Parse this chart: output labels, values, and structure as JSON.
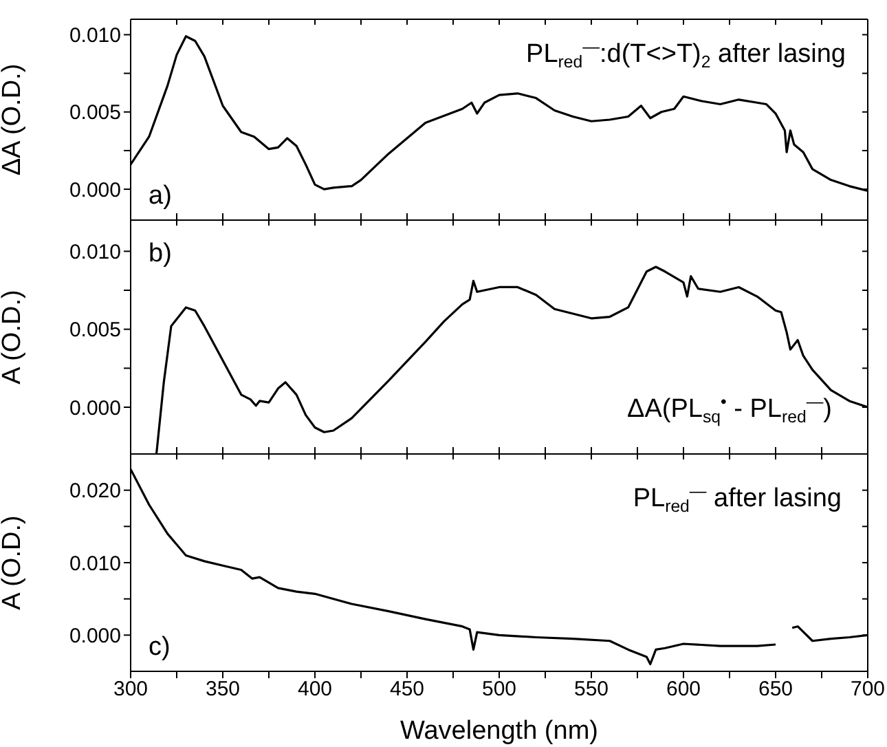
{
  "chart_data": [
    {
      "type": "line",
      "ylabel": "ΔA (O.D.)",
      "tick_labels": "y",
      "annotations": [
        "a)",
        "PL$_{red}$$^{—}$:d(T<>T)$_{2}$ after lasing"
      ],
      "xlim": [
        300,
        700
      ],
      "xticks": [
        300,
        {
          "value": 325,
          "label": null
        },
        350,
        {
          "value": 375,
          "label": null
        },
        400,
        {
          "value": 425,
          "label": null
        },
        450,
        {
          "value": 475,
          "label": null
        },
        500,
        {
          "value": 525,
          "label": null
        },
        550,
        {
          "value": 575,
          "label": null
        },
        600,
        {
          "value": 625,
          "label": null
        },
        650,
        {
          "value": 675,
          "label": null
        },
        700
      ],
      "ylim": [
        -0.002,
        0.011
      ],
      "yticks": [
        {
          "value": 0,
          "label": "0.000"
        },
        {
          "value": 0.0025,
          "label": null
        },
        {
          "value": 0.005,
          "label": "0.005"
        },
        {
          "value": 0.0075,
          "label": null
        },
        {
          "value": 0.01,
          "label": "0.010"
        }
      ],
      "series": [
        {
          "color": "#000000",
          "x": [
            300,
            310,
            320,
            325,
            330,
            335,
            340,
            350,
            360,
            367,
            375,
            380,
            385,
            390,
            395,
            400,
            405,
            410,
            420,
            425,
            440,
            460,
            480,
            485,
            488,
            492,
            500,
            510,
            520,
            530,
            540,
            550,
            560,
            570,
            577,
            582,
            588,
            595,
            600,
            610,
            620,
            630,
            640,
            645,
            650,
            655,
            656,
            658,
            660,
            665,
            670,
            680,
            690,
            700
          ],
          "values": [
            0.0016,
            0.0034,
            0.0067,
            0.0087,
            0.0099,
            0.0096,
            0.0086,
            0.0054,
            0.0037,
            0.0034,
            0.0026,
            0.0027,
            0.0033,
            0.0028,
            0.0016,
            0.0003,
            0.0,
            0.0001,
            0.0002,
            0.0006,
            0.0023,
            0.0043,
            0.0052,
            0.0056,
            0.0049,
            0.0056,
            0.0061,
            0.0062,
            0.0059,
            0.0051,
            0.0047,
            0.0044,
            0.0045,
            0.0047,
            0.0054,
            0.0046,
            0.005,
            0.0052,
            0.006,
            0.0057,
            0.0055,
            0.0058,
            0.0056,
            0.0055,
            0.0049,
            0.0038,
            0.0024,
            0.0038,
            0.0029,
            0.0024,
            0.0013,
            0.0006,
            0.0002,
            -0.0001
          ]
        }
      ]
    },
    {
      "type": "line",
      "ylabel": "A (O.D.)",
      "tick_labels": "y",
      "annotations": [
        "b)",
        "ΔA(PL$_{sq}$$^{•}$ - PL$_{red}$$^{—}$)"
      ],
      "xlim": [
        300,
        700
      ],
      "xticks": [
        300,
        {
          "value": 325,
          "label": null
        },
        350,
        {
          "value": 375,
          "label": null
        },
        400,
        {
          "value": 425,
          "label": null
        },
        450,
        {
          "value": 475,
          "label": null
        },
        500,
        {
          "value": 525,
          "label": null
        },
        550,
        {
          "value": 575,
          "label": null
        },
        600,
        {
          "value": 625,
          "label": null
        },
        650,
        {
          "value": 675,
          "label": null
        },
        700
      ],
      "ylim": [
        -0.003,
        0.012
      ],
      "yticks": [
        {
          "value": 0,
          "label": "0.000"
        },
        {
          "value": 0.0025,
          "label": null
        },
        {
          "value": 0.005,
          "label": "0.005"
        },
        {
          "value": 0.0075,
          "label": null
        },
        {
          "value": 0.01,
          "label": "0.010"
        }
      ],
      "series": [
        {
          "color": "#000000",
          "x": [
            314,
            318,
            322,
            330,
            335,
            340,
            350,
            360,
            365,
            368,
            370,
            375,
            380,
            384,
            390,
            395,
            400,
            405,
            410,
            420,
            440,
            460,
            470,
            480,
            484,
            486,
            488,
            500,
            510,
            520,
            530,
            550,
            560,
            570,
            580,
            585,
            590,
            600,
            602,
            604,
            608,
            620,
            630,
            640,
            650,
            653,
            656,
            658,
            662,
            665,
            670,
            680,
            690,
            700
          ],
          "values": [
            -0.003,
            0.0016,
            0.0052,
            0.0064,
            0.0062,
            0.0052,
            0.003,
            0.0008,
            0.0005,
            0.0001,
            0.0004,
            0.0003,
            0.0012,
            0.0016,
            0.0008,
            -0.0005,
            -0.0013,
            -0.0016,
            -0.0015,
            -0.0007,
            0.0017,
            0.0042,
            0.0055,
            0.0066,
            0.0069,
            0.0081,
            0.0074,
            0.0077,
            0.0077,
            0.0072,
            0.0063,
            0.0057,
            0.0058,
            0.0064,
            0.0087,
            0.009,
            0.0087,
            0.008,
            0.0071,
            0.0084,
            0.0076,
            0.0074,
            0.0077,
            0.0071,
            0.0062,
            0.0061,
            0.0048,
            0.0037,
            0.0043,
            0.0033,
            0.0024,
            0.0011,
            0.0004,
            0.0
          ]
        }
      ]
    },
    {
      "type": "line",
      "ylabel": "A (O.D.)",
      "xlabel": "Wavelength (nm)",
      "annotations": [
        "c)",
        "PL$_{red}$$^{—}$ after lasing"
      ],
      "xlim": [
        300,
        700
      ],
      "xticks": [
        300,
        {
          "value": 325,
          "label": null
        },
        350,
        {
          "value": 375,
          "label": null
        },
        400,
        {
          "value": 425,
          "label": null
        },
        450,
        {
          "value": 475,
          "label": null
        },
        500,
        {
          "value": 525,
          "label": null
        },
        550,
        {
          "value": 575,
          "label": null
        },
        600,
        {
          "value": 625,
          "label": null
        },
        650,
        {
          "value": 675,
          "label": null
        },
        700
      ],
      "ylim": [
        -0.005,
        0.025
      ],
      "yticks": [
        {
          "value": 0,
          "label": "0.000"
        },
        {
          "value": 0.005,
          "label": null
        },
        {
          "value": 0.01,
          "label": "0.010"
        },
        {
          "value": 0.015,
          "label": null
        },
        {
          "value": 0.02,
          "label": "0.020"
        }
      ],
      "series": [
        {
          "color": "#000000",
          "x": [
            300,
            310,
            320,
            330,
            340,
            350,
            360,
            366,
            370,
            380,
            390,
            400,
            420,
            440,
            460,
            470,
            480,
            484,
            486,
            488,
            500,
            520,
            540,
            560,
            570,
            580,
            582,
            585,
            590,
            600,
            620,
            640,
            650,
            655,
            657,
            659,
            662,
            670,
            680,
            690,
            700
          ],
          "values": [
            0.0229,
            0.018,
            0.014,
            0.011,
            0.0102,
            0.0096,
            0.009,
            0.0078,
            0.008,
            0.0065,
            0.006,
            0.0057,
            0.0043,
            0.0033,
            0.0022,
            0.0017,
            0.0012,
            0.0008,
            -0.002,
            0.0004,
            0.0,
            -0.0003,
            -0.0005,
            -0.0008,
            -0.002,
            -0.003,
            -0.004,
            -0.002,
            -0.0018,
            -0.0012,
            -0.0015,
            -0.0015,
            -0.0013,
            null,
            null,
            0.001,
            0.0012,
            -0.0008,
            -0.0005,
            -0.0003,
            0.0
          ]
        }
      ]
    }
  ]
}
